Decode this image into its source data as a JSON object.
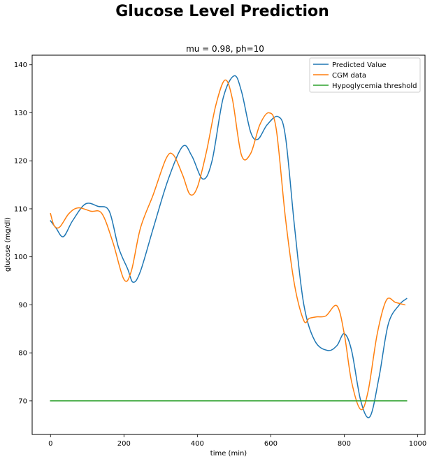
{
  "chart_data": {
    "type": "line",
    "title": "Glucose Level Prediction",
    "subtitle": "mu = 0.98, ph=10",
    "xlabel": "time (min)",
    "ylabel": "glucose (mg/dl)",
    "xlim": [
      -50,
      1020
    ],
    "ylim": [
      63,
      142
    ],
    "xticks": [
      0,
      200,
      400,
      600,
      800,
      1000
    ],
    "yticks": [
      70,
      80,
      90,
      100,
      110,
      120,
      130,
      140
    ],
    "grid": false,
    "legend": "top-right",
    "series": [
      {
        "name": "Predicted Value",
        "color": "#1f77b4",
        "x": [
          0,
          15,
          35,
          60,
          95,
          130,
          160,
          185,
          210,
          225,
          245,
          280,
          320,
          360,
          385,
          415,
          440,
          470,
          500,
          520,
          545,
          565,
          590,
          620,
          640,
          665,
          690,
          720,
          755,
          780,
          800,
          820,
          845,
          870,
          895,
          920,
          950,
          970
        ],
        "y": [
          107.5,
          106,
          104.2,
          107.5,
          111,
          110.5,
          109.5,
          102,
          97.5,
          94.7,
          97,
          106,
          116,
          123,
          121,
          116.2,
          120,
          133,
          137.7,
          134.5,
          126,
          124.5,
          127.5,
          129.2,
          125,
          106,
          90,
          82.5,
          80.5,
          81.5,
          84,
          80.5,
          70,
          66.7,
          75,
          86,
          90,
          91.3
        ]
      },
      {
        "name": "CGM data",
        "color": "#ff7f0e",
        "x": [
          0,
          10,
          25,
          50,
          75,
          110,
          140,
          170,
          200,
          220,
          245,
          280,
          315,
          335,
          360,
          380,
          400,
          425,
          450,
          475,
          495,
          520,
          545,
          570,
          595,
          615,
          640,
          665,
          690,
          705,
          725,
          750,
          780,
          800,
          820,
          845,
          865,
          890,
          915,
          940,
          965
        ],
        "y": [
          109,
          106.5,
          106.2,
          109,
          110.2,
          109.5,
          109,
          103,
          95.3,
          97,
          106,
          113,
          120.5,
          121.2,
          117,
          113,
          114.5,
          122,
          131.5,
          136.8,
          133,
          121.2,
          121.5,
          127.5,
          130,
          126.5,
          108,
          94,
          86.7,
          87.2,
          87.5,
          87.7,
          89.8,
          84,
          74,
          68.2,
          72,
          84,
          91,
          90.5,
          90
        ]
      },
      {
        "name": "Hypoglycemia threshold",
        "color": "#2ca02c",
        "x": [
          0,
          970
        ],
        "y": [
          70,
          70
        ]
      }
    ]
  }
}
